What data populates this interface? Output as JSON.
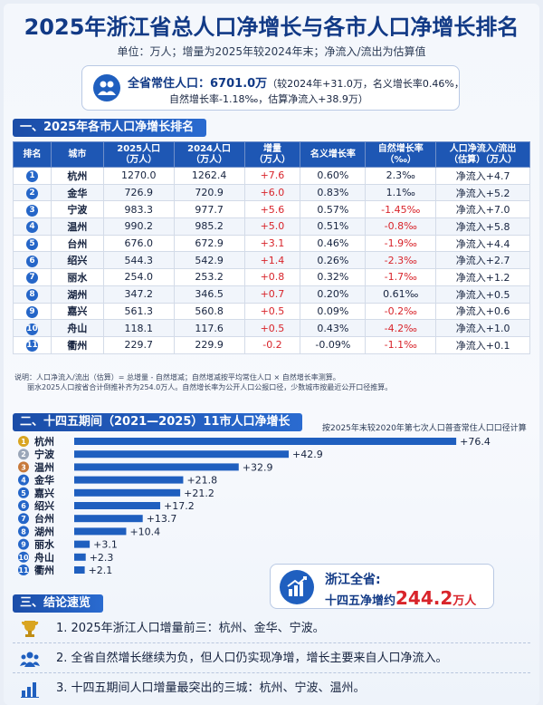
{
  "header": {
    "title": "2025年浙江省总人口净增长与各市人口净增长排名",
    "subtitle": "单位：万人；增量为2025年较2024年末；净流入/流出为估算值"
  },
  "summary": {
    "label": "全省常住人口：",
    "value": "6701.0万",
    "detail1": "（较2024年+31.0万，名义增长率0.46%，",
    "detail2": "自然增长率-1.18‰，估算净流入+38.9万）"
  },
  "section1": {
    "title": "一、2025年各市人口净增长排名"
  },
  "table": {
    "headers": [
      {
        "l1": "排名",
        "l2": ""
      },
      {
        "l1": "城市",
        "l2": ""
      },
      {
        "l1": "2025人口",
        "l2": "（万人）"
      },
      {
        "l1": "2024人口",
        "l2": "（万人）"
      },
      {
        "l1": "增量",
        "l2": "（万人）"
      },
      {
        "l1": "名义增长率",
        "l2": ""
      },
      {
        "l1": "自然增长率",
        "l2": "（‰）"
      },
      {
        "l1": "人口净流入/流出",
        "l2": "（估算）（万人）"
      }
    ],
    "rows": [
      {
        "rank": "1",
        "city": "杭州",
        "p2025": "1270.0",
        "p2024": "1262.4",
        "inc": "+7.6",
        "nom": "0.60%",
        "nat": "2.3‰",
        "flow": "净流入+4.7"
      },
      {
        "rank": "2",
        "city": "金华",
        "p2025": "726.9",
        "p2024": "720.9",
        "inc": "+6.0",
        "nom": "0.83%",
        "nat": "1.1‰",
        "flow": "净流入+5.2"
      },
      {
        "rank": "3",
        "city": "宁波",
        "p2025": "983.3",
        "p2024": "977.7",
        "inc": "+5.6",
        "nom": "0.57%",
        "nat": "-1.45‰",
        "flow": "净流入+7.0"
      },
      {
        "rank": "4",
        "city": "温州",
        "p2025": "990.2",
        "p2024": "985.2",
        "inc": "+5.0",
        "nom": "0.51%",
        "nat": "-0.8‰",
        "flow": "净流入+5.8"
      },
      {
        "rank": "5",
        "city": "台州",
        "p2025": "676.0",
        "p2024": "672.9",
        "inc": "+3.1",
        "nom": "0.46%",
        "nat": "-1.9‰",
        "flow": "净流入+4.4"
      },
      {
        "rank": "6",
        "city": "绍兴",
        "p2025": "544.3",
        "p2024": "542.9",
        "inc": "+1.4",
        "nom": "0.26%",
        "nat": "-2.3‰",
        "flow": "净流入+2.7"
      },
      {
        "rank": "7",
        "city": "丽水",
        "p2025": "254.0",
        "p2024": "253.2",
        "inc": "+0.8",
        "nom": "0.32%",
        "nat": "-1.7‰",
        "flow": "净流入+1.2"
      },
      {
        "rank": "8",
        "city": "湖州",
        "p2025": "347.2",
        "p2024": "346.5",
        "inc": "+0.7",
        "nom": "0.20%",
        "nat": "0.61‰",
        "flow": "净流入+0.5"
      },
      {
        "rank": "9",
        "city": "嘉兴",
        "p2025": "561.3",
        "p2024": "560.8",
        "inc": "+0.5",
        "nom": "0.09%",
        "nat": "-0.2‰",
        "flow": "净流入+0.6"
      },
      {
        "rank": "10",
        "city": "舟山",
        "p2025": "118.1",
        "p2024": "117.6",
        "inc": "+0.5",
        "nom": "0.43%",
        "nat": "-4.2‰",
        "flow": "净流入+1.0"
      },
      {
        "rank": "11",
        "city": "衢州",
        "p2025": "229.7",
        "p2024": "229.9",
        "inc": "-0.2",
        "nom": "-0.09%",
        "nat": "-1.1‰",
        "flow": "净流入+0.1"
      }
    ]
  },
  "notes": {
    "line1": "说明：人口净流入/流出（估算）= 总增量 - 自然增减；自然增减按平均常住人口 × 自然增长率测算。",
    "line2": "丽水2025人口按省合计倒推补齐为254.0万人。自然增长率为公开人口公报口径，少数城市按最近公开口径推算。"
  },
  "section2": {
    "title": "二、十四五期间（2021—2025）11市人口净增长",
    "note": "按2025年末较2020年第七次人口普查常住人口口径计算"
  },
  "chart_data": {
    "type": "bar",
    "orientation": "horizontal",
    "title": "十四五期间（2021—2025）11市人口净增长",
    "categories": [
      "杭州",
      "宁波",
      "温州",
      "金华",
      "嘉兴",
      "绍兴",
      "台州",
      "湖州",
      "丽水",
      "舟山",
      "衢州"
    ],
    "values": [
      76.4,
      42.9,
      32.9,
      21.8,
      21.2,
      17.2,
      13.7,
      10.4,
      3.1,
      2.3,
      2.1
    ],
    "labels": [
      "+76.4",
      "+42.9",
      "+32.9",
      "+21.8",
      "+21.2",
      "+17.2",
      "+13.7",
      "+10.4",
      "+3.1",
      "+2.3",
      "+2.1"
    ],
    "ranks": [
      "1",
      "2",
      "3",
      "4",
      "5",
      "6",
      "7",
      "8",
      "9",
      "10",
      "11"
    ],
    "xlim": [
      0,
      80
    ],
    "grid": false,
    "colors": {
      "bar": "#1f5fbf",
      "rank": "#2566c8",
      "gold": "#d9a521",
      "silver": "#9aa6b8",
      "bronze": "#c7793a"
    }
  },
  "total": {
    "line1": "浙江全省:",
    "line2_prefix": "十四五净增约",
    "value": "244.2",
    "unit": "万人"
  },
  "section3": {
    "title": "三、结论速览"
  },
  "conclusions": [
    {
      "icon": "trophy-icon",
      "text": "1. 2025年浙江人口增量前三：杭州、金华、宁波。"
    },
    {
      "icon": "people-icon",
      "text": "2. 全省自然增长继续为负，但人口仍实现净增，增长主要来自人口净流入。"
    },
    {
      "icon": "bar-chart-icon",
      "text": "3. 十四五期间人口增量最突出的三城：杭州、宁波、温州。"
    }
  ]
}
